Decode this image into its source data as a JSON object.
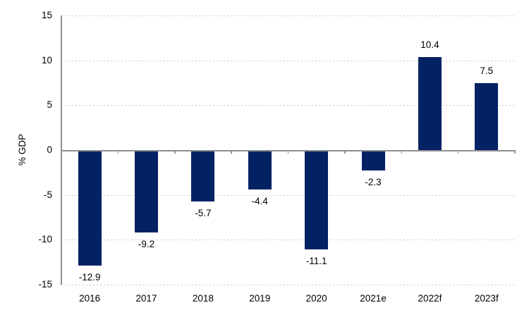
{
  "chart_data": {
    "type": "bar",
    "title": "",
    "xlabel": "",
    "ylabel": "% GDP",
    "categories": [
      "2016",
      "2017",
      "2018",
      "2019",
      "2020",
      "2021e",
      "2022f",
      "2023f"
    ],
    "values": [
      -12.9,
      -9.2,
      -5.7,
      -4.4,
      -11.1,
      -2.3,
      10.4,
      7.5
    ],
    "value_labels": [
      "-12.9",
      "-9.2",
      "-5.7",
      "-4.4",
      "-11.1",
      "-2.3",
      "10.4",
      "7.5"
    ],
    "ylim": [
      -15,
      15
    ],
    "yticks": [
      15,
      10,
      5,
      0,
      -5,
      -10,
      -15
    ],
    "grid": "horizontal-dotted",
    "legend_position": "none",
    "colors": {
      "bar": "#032264",
      "gridline": "#c9c9c9",
      "axis": "#8f8f8f",
      "text": "#000000",
      "background": "#ffffff"
    }
  }
}
